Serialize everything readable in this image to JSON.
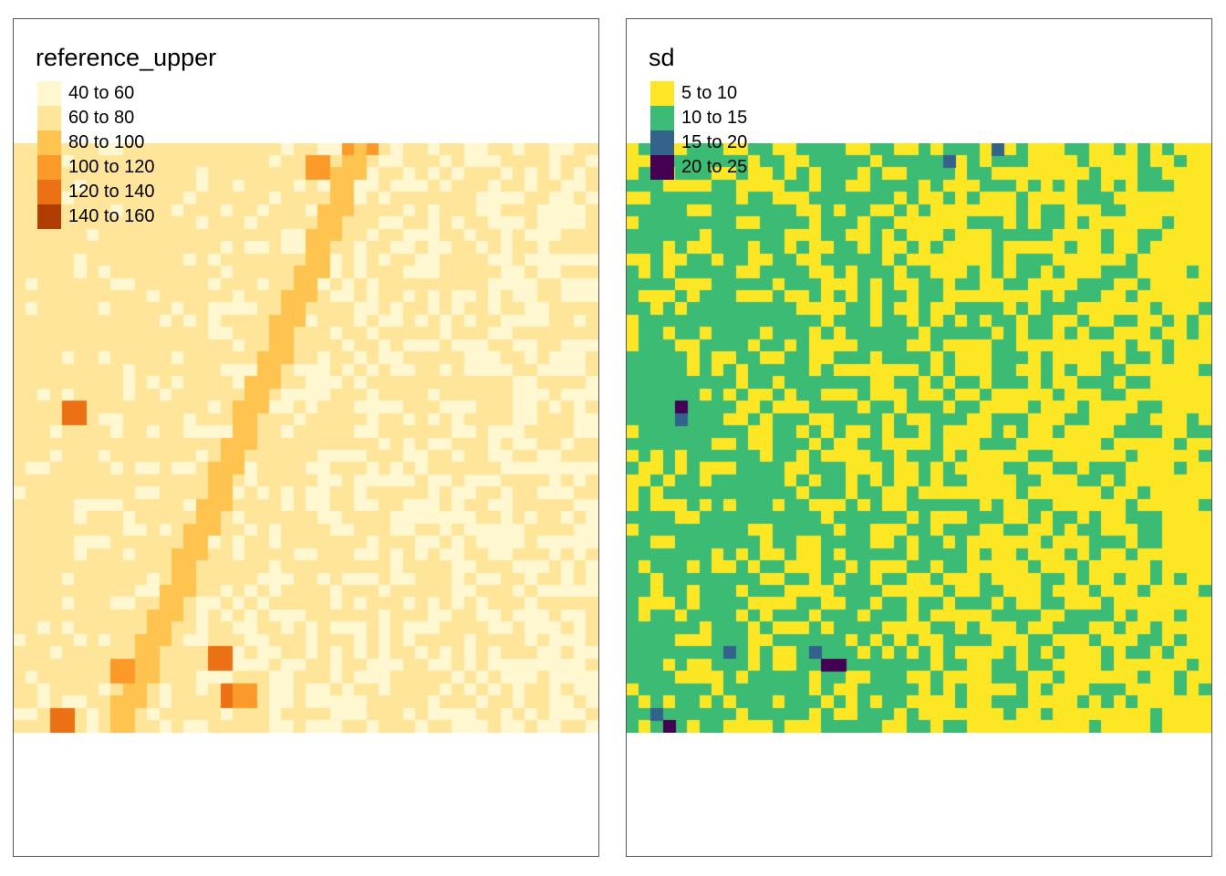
{
  "panels": [
    {
      "legend_title": "reference_upper",
      "classes": [
        {
          "label": "40 to 60",
          "color": "#FFF7CF"
        },
        {
          "label": "60 to 80",
          "color": "#FEE599"
        },
        {
          "label": "80 to 100",
          "color": "#FEC44F"
        },
        {
          "label": "100 to 120",
          "color": "#FB9A29"
        },
        {
          "label": "120 to 140",
          "color": "#EC7014"
        },
        {
          "label": "140 to 160",
          "color": "#B13D05"
        }
      ],
      "background_class": 1
    },
    {
      "legend_title": "sd",
      "classes": [
        {
          "label": "5 to 10",
          "color": "#FDE725"
        },
        {
          "label": "10 to 15",
          "color": "#3CBB75"
        },
        {
          "label": "15 to 20",
          "color": "#33638D"
        },
        {
          "label": "20 to 25",
          "color": "#440154"
        }
      ],
      "background_class": 1
    }
  ]
}
